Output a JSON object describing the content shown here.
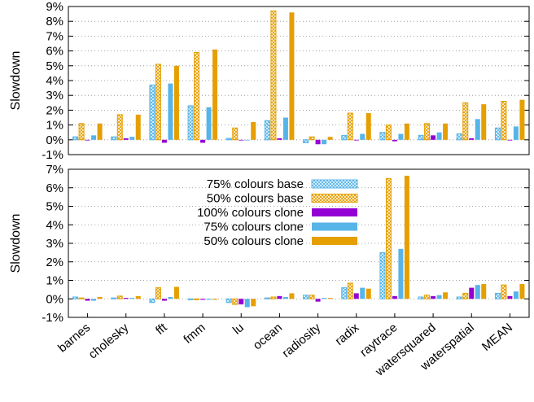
{
  "chart_data": [
    {
      "type": "bar",
      "ylabel": "Slowdown",
      "ylim": [
        -1,
        9
      ],
      "yticks": [
        "-1%",
        "0%",
        "1%",
        "2%",
        "3%",
        "4%",
        "5%",
        "6%",
        "7%",
        "8%",
        "9%"
      ],
      "grid": "horizontal dotted",
      "categories": [
        "barnes",
        "cholesky",
        "fft",
        "fmm",
        "lu",
        "ocean",
        "radiosity",
        "radix",
        "raytrace",
        "watersquared",
        "waterspatial",
        "MEAN"
      ],
      "series": [
        {
          "name": "75% colours base",
          "values": [
            0.2,
            0.2,
            3.7,
            2.3,
            0.1,
            1.3,
            -0.2,
            0.3,
            0.5,
            0.3,
            0.4,
            0.8
          ]
        },
        {
          "name": "50% colours base",
          "values": [
            1.1,
            1.7,
            5.1,
            5.9,
            0.8,
            8.7,
            0.2,
            1.8,
            1.0,
            1.1,
            2.5,
            2.6
          ]
        },
        {
          "name": "100% colours clone",
          "values": [
            0.0,
            0.1,
            -0.2,
            -0.2,
            0.0,
            0.1,
            -0.3,
            0.0,
            -0.1,
            0.3,
            0.1,
            0.0
          ]
        },
        {
          "name": "75% colours clone",
          "values": [
            0.3,
            0.2,
            3.8,
            2.2,
            0.0,
            1.5,
            -0.3,
            0.4,
            0.4,
            0.5,
            1.4,
            0.9
          ]
        },
        {
          "name": "50% colours clone",
          "values": [
            1.1,
            1.7,
            5.0,
            6.1,
            1.2,
            8.6,
            0.2,
            1.8,
            1.1,
            1.1,
            2.4,
            2.7
          ]
        }
      ]
    },
    {
      "type": "bar",
      "ylabel": "Slowdown",
      "ylim": [
        -1,
        7
      ],
      "yticks": [
        "-1%",
        "0%",
        "1%",
        "2%",
        "3%",
        "4%",
        "5%",
        "6%",
        "7%"
      ],
      "grid": "horizontal dotted",
      "legend": "top-left",
      "categories": [
        "barnes",
        "cholesky",
        "fft",
        "fmm",
        "lu",
        "ocean",
        "radiosity",
        "radix",
        "raytrace",
        "watersquared",
        "waterspatial",
        "MEAN"
      ],
      "series": [
        {
          "name": "75% colours base",
          "values": [
            0.1,
            0.05,
            -0.2,
            -0.05,
            -0.2,
            0.05,
            0.2,
            0.6,
            2.5,
            0.1,
            0.1,
            0.3
          ]
        },
        {
          "name": "50% colours base",
          "values": [
            0.05,
            0.15,
            0.6,
            -0.05,
            -0.3,
            0.1,
            0.2,
            0.85,
            6.5,
            0.2,
            0.3,
            0.75
          ]
        },
        {
          "name": "100% colours clone",
          "values": [
            -0.1,
            0.05,
            -0.1,
            -0.05,
            -0.3,
            0.15,
            -0.15,
            0.3,
            0.15,
            0.15,
            0.6,
            0.15
          ]
        },
        {
          "name": "75% colours clone",
          "values": [
            -0.1,
            0.05,
            0.1,
            -0.05,
            -0.45,
            0.1,
            0.05,
            0.6,
            2.7,
            0.2,
            0.75,
            0.4
          ]
        },
        {
          "name": "50% colours clone",
          "values": [
            0.1,
            0.15,
            0.65,
            -0.05,
            -0.4,
            0.3,
            0.05,
            0.55,
            6.65,
            0.35,
            0.8,
            0.8
          ]
        }
      ]
    }
  ],
  "colors": {
    "blue": "#56b4e9",
    "orange": "#e69f00",
    "purple": "#9400d3",
    "grid": "#888888",
    "axis": "#000000"
  }
}
